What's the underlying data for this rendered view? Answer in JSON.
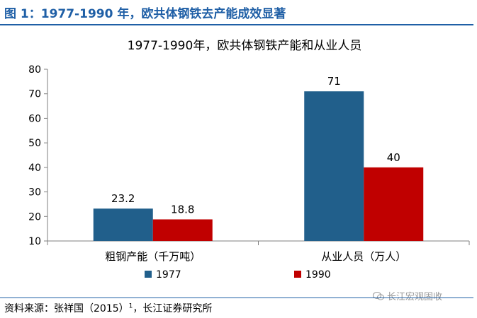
{
  "figure": {
    "title": "图 1：1977-1990 年，欧共体钢铁去产能成效显著",
    "source_label": "资料来源：张祥国（2015）",
    "source_sup": "1",
    "source_rest": "，长江证券研究所",
    "watermark": "长江宏观固收"
  },
  "chart_data": {
    "type": "bar",
    "title": "1977-1990年，欧共体钢铁产能和从业人员",
    "categories": [
      "粗钢产能（千万吨）",
      "从业人员（万人）"
    ],
    "series": [
      {
        "name": "1977",
        "values": [
          23.2,
          71
        ],
        "labels": [
          "23.2",
          "71"
        ],
        "color": "#215f8b"
      },
      {
        "name": "1990",
        "values": [
          18.8,
          40
        ],
        "labels": [
          "18.8",
          "40"
        ],
        "color": "#c00000"
      }
    ],
    "ylim": [
      10,
      80
    ],
    "yticks": [
      "10",
      "20",
      "30",
      "40",
      "50",
      "60",
      "70",
      "80"
    ],
    "xlabel": "",
    "ylabel": "",
    "grid": false,
    "legend": "bottom"
  }
}
